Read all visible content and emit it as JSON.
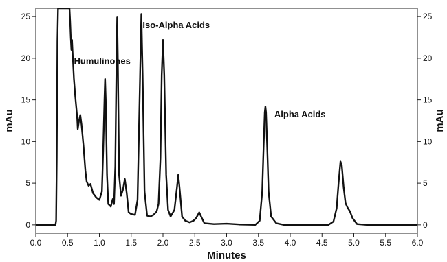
{
  "chart_data": {
    "type": "line",
    "title": "",
    "xlabel": "Minutes",
    "ylabel": "mAu",
    "ylabel_right": "mAu",
    "xlim": [
      0.0,
      6.0
    ],
    "ylim": [
      -1,
      26
    ],
    "x_ticks": [
      "0.0",
      "0.5",
      "1.0",
      "1.5",
      "2.0",
      "2.5",
      "3.0",
      "3.5",
      "4.0",
      "4.5",
      "5.0",
      "5.5",
      "6.0"
    ],
    "y_ticks": [
      "0",
      "5",
      "10",
      "15",
      "20",
      "25"
    ],
    "grid": false,
    "legend": "none",
    "annotations": [
      {
        "text": "Humulinones",
        "x": 0.6,
        "y": 19.3
      },
      {
        "text": "Iso-Alpha Acids",
        "x": 1.68,
        "y": 23.6
      },
      {
        "text": "Alpha Acids",
        "x": 3.75,
        "y": 12.9
      }
    ],
    "series": [
      {
        "color": "#111111",
        "points": [
          [
            0.0,
            0.0
          ],
          [
            0.31,
            0.0
          ],
          [
            0.32,
            0.5
          ],
          [
            0.33,
            8
          ],
          [
            0.34,
            22
          ],
          [
            0.35,
            26
          ],
          [
            0.53,
            26
          ],
          [
            0.54,
            24.5
          ],
          [
            0.55,
            22.5
          ],
          [
            0.56,
            21
          ],
          [
            0.57,
            22.2
          ],
          [
            0.58,
            20.5
          ],
          [
            0.6,
            17.5
          ],
          [
            0.62,
            15.5
          ],
          [
            0.65,
            13
          ],
          [
            0.66,
            11.5
          ],
          [
            0.68,
            12.5
          ],
          [
            0.7,
            13.2
          ],
          [
            0.72,
            12
          ],
          [
            0.75,
            9.5
          ],
          [
            0.78,
            6.5
          ],
          [
            0.8,
            5.2
          ],
          [
            0.83,
            4.7
          ],
          [
            0.86,
            4.9
          ],
          [
            0.9,
            3.8
          ],
          [
            0.95,
            3.3
          ],
          [
            1.0,
            3.0
          ],
          [
            1.04,
            4.0
          ],
          [
            1.06,
            9
          ],
          [
            1.08,
            15
          ],
          [
            1.09,
            17.5
          ],
          [
            1.1,
            15
          ],
          [
            1.12,
            6
          ],
          [
            1.14,
            2.5
          ],
          [
            1.18,
            2.2
          ],
          [
            1.21,
            3.1
          ],
          [
            1.23,
            2.5
          ],
          [
            1.25,
            7
          ],
          [
            1.27,
            20
          ],
          [
            1.28,
            24.9
          ],
          [
            1.29,
            20
          ],
          [
            1.31,
            6
          ],
          [
            1.34,
            3.5
          ],
          [
            1.37,
            4.2
          ],
          [
            1.4,
            5.5
          ],
          [
            1.43,
            3.8
          ],
          [
            1.46,
            1.5
          ],
          [
            1.5,
            1.3
          ],
          [
            1.56,
            1.2
          ],
          [
            1.6,
            3
          ],
          [
            1.64,
            18
          ],
          [
            1.66,
            25.3
          ],
          [
            1.68,
            18
          ],
          [
            1.71,
            4
          ],
          [
            1.75,
            1.1
          ],
          [
            1.8,
            1.0
          ],
          [
            1.85,
            1.2
          ],
          [
            1.9,
            1.6
          ],
          [
            1.93,
            2.5
          ],
          [
            1.96,
            8
          ],
          [
            1.98,
            18
          ],
          [
            2.0,
            22.2
          ],
          [
            2.02,
            18
          ],
          [
            2.05,
            6
          ],
          [
            2.08,
            1.8
          ],
          [
            2.12,
            1.0
          ],
          [
            2.18,
            1.8
          ],
          [
            2.22,
            4.5
          ],
          [
            2.24,
            6.0
          ],
          [
            2.26,
            4.5
          ],
          [
            2.3,
            1.0
          ],
          [
            2.35,
            0.5
          ],
          [
            2.42,
            0.3
          ],
          [
            2.48,
            0.5
          ],
          [
            2.52,
            0.8
          ],
          [
            2.57,
            1.5
          ],
          [
            2.6,
            1.0
          ],
          [
            2.65,
            0.2
          ],
          [
            2.8,
            0.1
          ],
          [
            3.0,
            0.15
          ],
          [
            3.2,
            0.05
          ],
          [
            3.45,
            0.0
          ],
          [
            3.52,
            0.5
          ],
          [
            3.56,
            4
          ],
          [
            3.58,
            9
          ],
          [
            3.6,
            13.5
          ],
          [
            3.61,
            14.2
          ],
          [
            3.62,
            13.5
          ],
          [
            3.64,
            9
          ],
          [
            3.66,
            4
          ],
          [
            3.7,
            1
          ],
          [
            3.78,
            0.2
          ],
          [
            3.9,
            0.0
          ],
          [
            4.6,
            0.0
          ],
          [
            4.68,
            0.4
          ],
          [
            4.73,
            2
          ],
          [
            4.76,
            5
          ],
          [
            4.79,
            7.6
          ],
          [
            4.81,
            7.2
          ],
          [
            4.84,
            4.5
          ],
          [
            4.87,
            2.6
          ],
          [
            4.9,
            2.1
          ],
          [
            4.94,
            1.6
          ],
          [
            4.98,
            0.8
          ],
          [
            5.05,
            0.1
          ],
          [
            5.2,
            0.0
          ],
          [
            6.0,
            0.0
          ]
        ]
      }
    ]
  }
}
